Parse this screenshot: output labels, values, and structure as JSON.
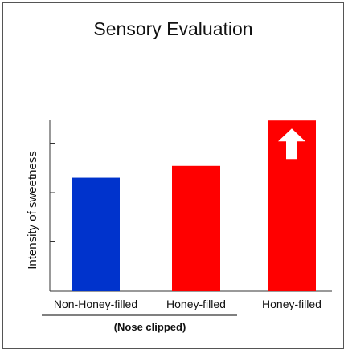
{
  "chart_data": {
    "type": "bar",
    "title": "Sensory Evaluation",
    "ylabel": "Intensity of sweetness",
    "xlabel": "",
    "categories": [
      "Non-Honey-filled",
      "Honey-filled",
      "Honey-filled"
    ],
    "values": [
      1.15,
      1.27,
      1.73
    ],
    "colors": [
      "#0033cc",
      "#ff0000",
      "#ff0000"
    ],
    "ylim": [
      0,
      2
    ],
    "yticks": [
      0.5,
      1.0,
      1.5
    ],
    "reference_line": {
      "value": 1.15,
      "style": "dashed"
    },
    "group_label": {
      "text": "(Nose clipped)",
      "categories": [
        0,
        1
      ]
    },
    "annotations": [
      {
        "category": 2,
        "type": "up-arrow",
        "color": "#ffffff"
      }
    ],
    "grid": false,
    "legend": "none"
  }
}
